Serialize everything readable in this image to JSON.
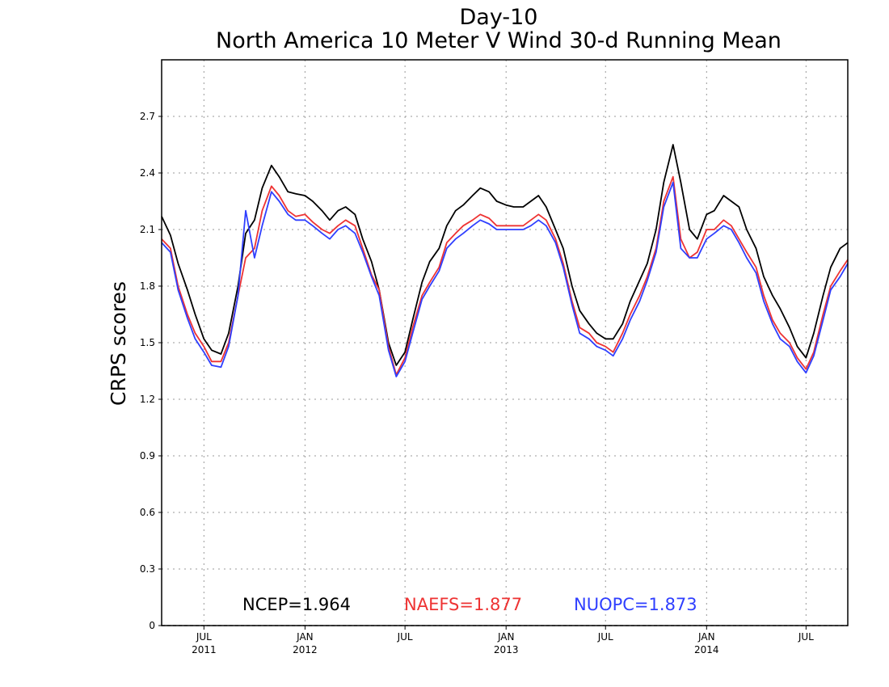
{
  "chart_data": {
    "type": "line",
    "title": "Day-10",
    "subtitle": "North America 10 Meter V Wind 30-d Running Mean",
    "xlabel": "",
    "ylabel": "CRPS scores",
    "ylim": [
      0,
      3.0
    ],
    "yticks": [
      "0",
      "0.3",
      "0.6",
      "0.9",
      "1.2",
      "1.5",
      "1.8",
      "2.1",
      "2.4",
      "2.7"
    ],
    "yticks_values": [
      0,
      0.3,
      0.6,
      0.9,
      1.2,
      1.5,
      1.8,
      2.1,
      2.4,
      2.7
    ],
    "xlim": [
      "2011-04-15",
      "2014-09-15"
    ],
    "xticks": [
      {
        "date": "2011-07-01",
        "month": "JUL",
        "year": "2011"
      },
      {
        "date": "2012-01-01",
        "month": "JAN",
        "year": "2012"
      },
      {
        "date": "2012-07-01",
        "month": "JUL",
        "year": ""
      },
      {
        "date": "2013-01-01",
        "month": "JAN",
        "year": "2013"
      },
      {
        "date": "2013-07-01",
        "month": "JUL",
        "year": ""
      },
      {
        "date": "2014-01-01",
        "month": "JAN",
        "year": "2014"
      },
      {
        "date": "2014-07-01",
        "month": "JUL",
        "year": ""
      }
    ],
    "grid": true,
    "legend": "bottom",
    "series": [
      {
        "name": "NCEP",
        "label": "NCEP=1.964",
        "color": "#000000",
        "x": [
          "2011-04-15",
          "2011-05-01",
          "2011-05-15",
          "2011-06-01",
          "2011-06-15",
          "2011-07-01",
          "2011-07-15",
          "2011-08-01",
          "2011-08-15",
          "2011-09-01",
          "2011-09-15",
          "2011-10-01",
          "2011-10-15",
          "2011-11-01",
          "2011-11-15",
          "2011-12-01",
          "2011-12-15",
          "2012-01-01",
          "2012-01-15",
          "2012-02-01",
          "2012-02-15",
          "2012-03-01",
          "2012-03-15",
          "2012-04-01",
          "2012-04-15",
          "2012-05-01",
          "2012-05-15",
          "2012-06-01",
          "2012-06-15",
          "2012-07-01",
          "2012-07-15",
          "2012-08-01",
          "2012-08-15",
          "2012-09-01",
          "2012-09-15",
          "2012-10-01",
          "2012-10-15",
          "2012-11-01",
          "2012-11-15",
          "2012-12-01",
          "2012-12-15",
          "2013-01-01",
          "2013-01-15",
          "2013-02-01",
          "2013-02-15",
          "2013-03-01",
          "2013-03-15",
          "2013-04-01",
          "2013-04-15",
          "2013-05-01",
          "2013-05-15",
          "2013-06-01",
          "2013-06-15",
          "2013-07-01",
          "2013-07-15",
          "2013-08-01",
          "2013-08-15",
          "2013-09-01",
          "2013-09-15",
          "2013-10-01",
          "2013-10-15",
          "2013-11-01",
          "2013-11-15",
          "2013-12-01",
          "2013-12-15",
          "2014-01-01",
          "2014-01-15",
          "2014-02-01",
          "2014-02-15",
          "2014-03-01",
          "2014-03-15",
          "2014-04-01",
          "2014-04-15",
          "2014-05-01",
          "2014-05-15",
          "2014-06-01",
          "2014-06-15",
          "2014-07-01",
          "2014-07-15",
          "2014-08-01",
          "2014-08-15",
          "2014-09-01",
          "2014-09-15"
        ],
        "values": [
          2.17,
          2.07,
          1.92,
          1.78,
          1.65,
          1.52,
          1.46,
          1.44,
          1.55,
          1.8,
          2.08,
          2.15,
          2.32,
          2.44,
          2.38,
          2.3,
          2.29,
          2.28,
          2.25,
          2.2,
          2.15,
          2.2,
          2.22,
          2.18,
          2.05,
          1.93,
          1.78,
          1.5,
          1.38,
          1.45,
          1.62,
          1.82,
          1.93,
          2.0,
          2.12,
          2.2,
          2.23,
          2.28,
          2.32,
          2.3,
          2.25,
          2.23,
          2.22,
          2.22,
          2.25,
          2.28,
          2.22,
          2.1,
          2.0,
          1.8,
          1.67,
          1.6,
          1.55,
          1.52,
          1.52,
          1.6,
          1.72,
          1.83,
          1.92,
          2.1,
          2.35,
          2.55,
          2.35,
          2.1,
          2.05,
          2.18,
          2.2,
          2.28,
          2.25,
          2.22,
          2.1,
          2.0,
          1.85,
          1.75,
          1.68,
          1.58,
          1.48,
          1.42,
          1.55,
          1.75,
          1.9,
          2.0,
          2.03
        ]
      },
      {
        "name": "NAEFS",
        "label": "NAEFS=1.877",
        "color": "#ee3333",
        "x": [
          "2011-04-15",
          "2011-05-01",
          "2011-05-15",
          "2011-06-01",
          "2011-06-15",
          "2011-07-01",
          "2011-07-15",
          "2011-08-01",
          "2011-08-15",
          "2011-09-01",
          "2011-09-15",
          "2011-10-01",
          "2011-10-15",
          "2011-11-01",
          "2011-11-15",
          "2011-12-01",
          "2011-12-15",
          "2012-01-01",
          "2012-01-15",
          "2012-02-01",
          "2012-02-15",
          "2012-03-01",
          "2012-03-15",
          "2012-04-01",
          "2012-04-15",
          "2012-05-01",
          "2012-05-15",
          "2012-06-01",
          "2012-06-15",
          "2012-07-01",
          "2012-07-15",
          "2012-08-01",
          "2012-08-15",
          "2012-09-01",
          "2012-09-15",
          "2012-10-01",
          "2012-10-15",
          "2012-11-01",
          "2012-11-15",
          "2012-12-01",
          "2012-12-15",
          "2013-01-01",
          "2013-01-15",
          "2013-02-01",
          "2013-02-15",
          "2013-03-01",
          "2013-03-15",
          "2013-04-01",
          "2013-04-15",
          "2013-05-01",
          "2013-05-15",
          "2013-06-01",
          "2013-06-15",
          "2013-07-01",
          "2013-07-15",
          "2013-08-01",
          "2013-08-15",
          "2013-09-01",
          "2013-09-15",
          "2013-10-01",
          "2013-10-15",
          "2013-11-01",
          "2013-11-15",
          "2013-12-01",
          "2013-12-15",
          "2014-01-01",
          "2014-01-15",
          "2014-02-01",
          "2014-02-15",
          "2014-03-01",
          "2014-03-15",
          "2014-04-01",
          "2014-04-15",
          "2014-05-01",
          "2014-05-15",
          "2014-06-01",
          "2014-06-15",
          "2014-07-01",
          "2014-07-15",
          "2014-08-01",
          "2014-08-15",
          "2014-09-01",
          "2014-09-15"
        ],
        "values": [
          2.05,
          2.0,
          1.8,
          1.65,
          1.55,
          1.48,
          1.4,
          1.4,
          1.5,
          1.75,
          1.95,
          2.0,
          2.2,
          2.33,
          2.28,
          2.2,
          2.17,
          2.18,
          2.14,
          2.1,
          2.08,
          2.12,
          2.15,
          2.12,
          2.0,
          1.86,
          1.78,
          1.48,
          1.33,
          1.42,
          1.58,
          1.75,
          1.82,
          1.9,
          2.03,
          2.08,
          2.12,
          2.15,
          2.18,
          2.16,
          2.12,
          2.12,
          2.12,
          2.12,
          2.15,
          2.18,
          2.15,
          2.05,
          1.92,
          1.72,
          1.58,
          1.55,
          1.5,
          1.48,
          1.45,
          1.55,
          1.65,
          1.75,
          1.85,
          2.0,
          2.25,
          2.38,
          2.05,
          1.95,
          1.98,
          2.1,
          2.1,
          2.15,
          2.12,
          2.05,
          1.98,
          1.9,
          1.75,
          1.62,
          1.55,
          1.5,
          1.42,
          1.36,
          1.45,
          1.65,
          1.8,
          1.88,
          1.94
        ]
      },
      {
        "name": "NUOPC",
        "label": "NUOPC=1.873",
        "color": "#2f3fff",
        "x": [
          "2011-04-15",
          "2011-05-01",
          "2011-05-15",
          "2011-06-01",
          "2011-06-15",
          "2011-07-01",
          "2011-07-15",
          "2011-08-01",
          "2011-08-15",
          "2011-09-01",
          "2011-09-15",
          "2011-10-01",
          "2011-10-15",
          "2011-11-01",
          "2011-11-15",
          "2011-12-01",
          "2011-12-15",
          "2012-01-01",
          "2012-01-15",
          "2012-02-01",
          "2012-02-15",
          "2012-03-01",
          "2012-03-15",
          "2012-04-01",
          "2012-04-15",
          "2012-05-01",
          "2012-05-15",
          "2012-06-01",
          "2012-06-15",
          "2012-07-01",
          "2012-07-15",
          "2012-08-01",
          "2012-08-15",
          "2012-09-01",
          "2012-09-15",
          "2012-10-01",
          "2012-10-15",
          "2012-11-01",
          "2012-11-15",
          "2012-12-01",
          "2012-12-15",
          "2013-01-01",
          "2013-01-15",
          "2013-02-01",
          "2013-02-15",
          "2013-03-01",
          "2013-03-15",
          "2013-04-01",
          "2013-04-15",
          "2013-05-01",
          "2013-05-15",
          "2013-06-01",
          "2013-06-15",
          "2013-07-01",
          "2013-07-15",
          "2013-08-01",
          "2013-08-15",
          "2013-09-01",
          "2013-09-15",
          "2013-10-01",
          "2013-10-15",
          "2013-11-01",
          "2013-11-15",
          "2013-12-01",
          "2013-12-15",
          "2014-01-01",
          "2014-01-15",
          "2014-02-01",
          "2014-02-15",
          "2014-03-01",
          "2014-03-15",
          "2014-04-01",
          "2014-04-15",
          "2014-05-01",
          "2014-05-15",
          "2014-06-01",
          "2014-06-15",
          "2014-07-01",
          "2014-07-15",
          "2014-08-01",
          "2014-08-15",
          "2014-09-01",
          "2014-09-15"
        ],
        "values": [
          2.03,
          1.98,
          1.78,
          1.63,
          1.52,
          1.45,
          1.38,
          1.37,
          1.48,
          1.75,
          2.2,
          1.95,
          2.12,
          2.3,
          2.25,
          2.18,
          2.15,
          2.15,
          2.12,
          2.08,
          2.05,
          2.1,
          2.12,
          2.08,
          1.98,
          1.85,
          1.75,
          1.46,
          1.32,
          1.4,
          1.55,
          1.73,
          1.8,
          1.88,
          2.0,
          2.05,
          2.08,
          2.12,
          2.15,
          2.13,
          2.1,
          2.1,
          2.1,
          2.1,
          2.12,
          2.15,
          2.12,
          2.03,
          1.9,
          1.7,
          1.55,
          1.52,
          1.48,
          1.46,
          1.43,
          1.52,
          1.62,
          1.72,
          1.83,
          1.98,
          2.22,
          2.35,
          2.0,
          1.95,
          1.95,
          2.05,
          2.08,
          2.12,
          2.1,
          2.03,
          1.95,
          1.87,
          1.72,
          1.6,
          1.52,
          1.48,
          1.4,
          1.34,
          1.43,
          1.62,
          1.78,
          1.85,
          1.92
        ]
      }
    ]
  }
}
